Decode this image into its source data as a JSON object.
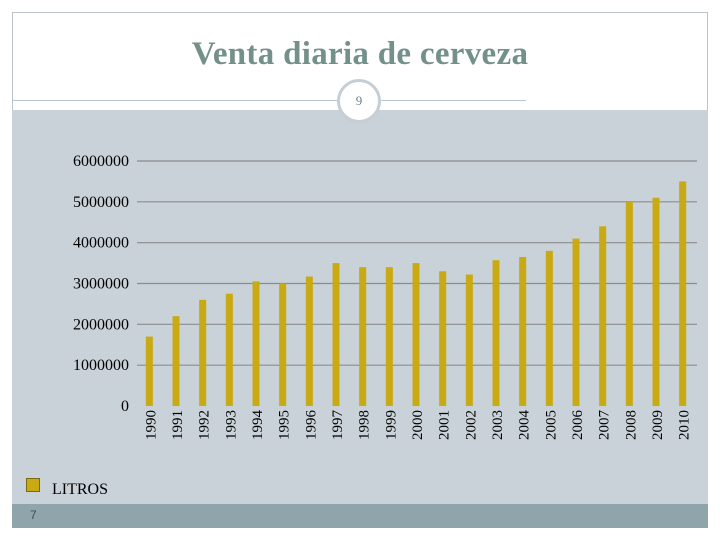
{
  "slide": {
    "title": "Venta diaria de cerveza",
    "badge_number": "9",
    "footer_number": "7"
  },
  "colors": {
    "bar": "#c9aa12",
    "chart_background": "#c8d2d8",
    "title": "#73908a",
    "gridline": "#8c8c8c"
  },
  "chart_data": {
    "type": "bar",
    "title": "",
    "xlabel": "",
    "ylabel": "",
    "ylim": [
      0,
      6000000
    ],
    "yticks": [
      0,
      1000000,
      2000000,
      3000000,
      4000000,
      5000000,
      6000000
    ],
    "ytick_labels": [
      "0",
      "1000000",
      "2000000",
      "3000000",
      "4000000",
      "5000000",
      "6000000"
    ],
    "grid": true,
    "legend": "bottom-left",
    "categories": [
      "1990",
      "1991",
      "1992",
      "1993",
      "1994",
      "1995",
      "1996",
      "1997",
      "1998",
      "1999",
      "2000",
      "2001",
      "2002",
      "2003",
      "2004",
      "2005",
      "2006",
      "2007",
      "2008",
      "2009",
      "2010"
    ],
    "series": [
      {
        "name": "LITROS",
        "values": [
          1700000,
          2200000,
          2600000,
          2750000,
          3050000,
          3000000,
          3170000,
          3500000,
          3400000,
          3400000,
          3500000,
          3300000,
          3220000,
          3570000,
          3650000,
          3800000,
          4100000,
          4400000,
          5000000,
          5100000,
          5500000
        ]
      }
    ]
  }
}
